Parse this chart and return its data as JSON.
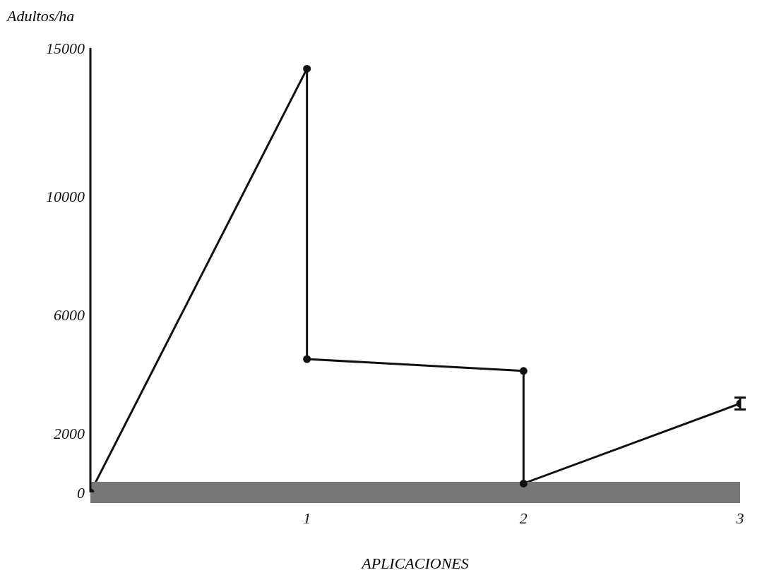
{
  "chart_data": {
    "type": "line",
    "ylabel": "Adultos/ha",
    "xlabel": "APLICACIONES",
    "x": [
      0,
      1,
      1,
      2,
      2,
      3
    ],
    "series": [
      {
        "color": "#111111",
        "values": [
          0,
          14300,
          4500,
          4100,
          300,
          3000
        ],
        "errors": [
          null,
          null,
          null,
          null,
          null,
          200
        ]
      }
    ],
    "xlim": [
      0,
      3
    ],
    "xticks": [
      1,
      2,
      3
    ],
    "ylim": [
      0,
      15000
    ],
    "yticks": [
      0,
      2000,
      6000,
      10000,
      15000
    ],
    "marker": "circle",
    "line_style": "solid"
  }
}
